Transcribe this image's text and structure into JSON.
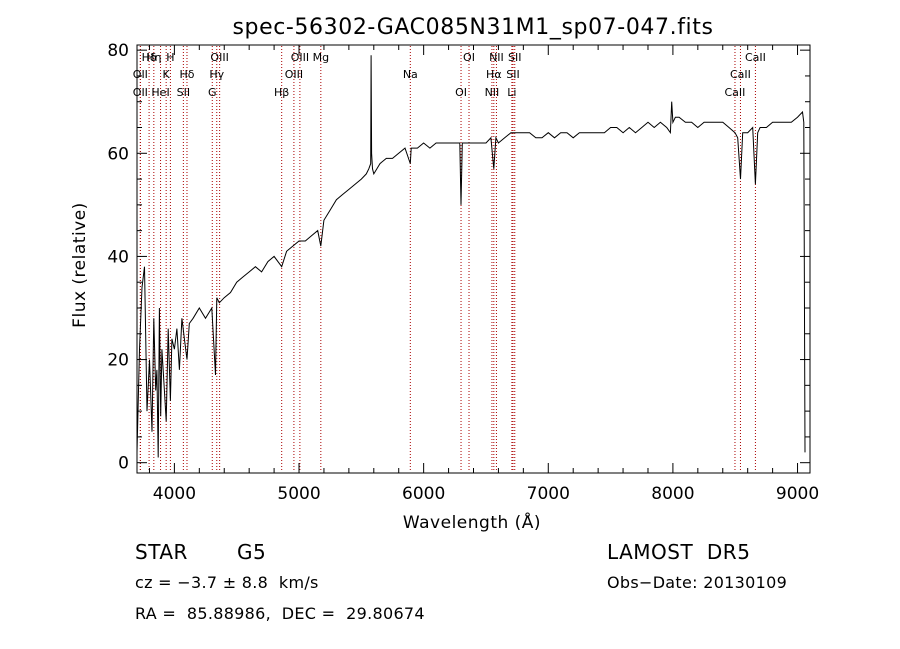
{
  "chart_data": {
    "type": "line",
    "title": "spec-56302-GAC085N31M1_sp07-047.fits",
    "xlabel": "Wavelength (Å)",
    "ylabel": "Flux (relative)",
    "xlim": [
      3700,
      9100
    ],
    "ylim": [
      -2,
      81
    ],
    "xticks": [
      "4000",
      "5000",
      "6000",
      "7000",
      "8000",
      "9000"
    ],
    "yticks": [
      "0",
      "20",
      "40",
      "60",
      "80"
    ],
    "grid": false,
    "series": [
      {
        "x": [
          3700,
          3720,
          3740,
          3760,
          3780,
          3800,
          3820,
          3835,
          3850,
          3860,
          3870,
          3880,
          3890,
          3900,
          3920,
          3934,
          3950,
          3968,
          3980,
          4000,
          4020,
          4040,
          4060,
          4080,
          4101,
          4120,
          4150,
          4200,
          4250,
          4300,
          4330,
          4340,
          4360,
          4400,
          4450,
          4500,
          4550,
          4600,
          4650,
          4700,
          4750,
          4800,
          4861,
          4900,
          4950,
          5000,
          5050,
          5100,
          5150,
          5175,
          5200,
          5250,
          5300,
          5350,
          5400,
          5450,
          5500,
          5540,
          5560,
          5575,
          5578,
          5582,
          5590,
          5600,
          5650,
          5700,
          5750,
          5800,
          5850,
          5893,
          5900,
          5950,
          6000,
          6050,
          6100,
          6150,
          6200,
          6250,
          6290,
          6300,
          6310,
          6350,
          6400,
          6450,
          6500,
          6540,
          6563,
          6580,
          6600,
          6650,
          6700,
          6750,
          6800,
          6850,
          6900,
          6950,
          7000,
          7050,
          7100,
          7150,
          7200,
          7250,
          7300,
          7350,
          7400,
          7450,
          7500,
          7550,
          7600,
          7650,
          7700,
          7750,
          7800,
          7850,
          7900,
          7950,
          7980,
          7990,
          8000,
          8020,
          8050,
          8100,
          8150,
          8200,
          8250,
          8300,
          8350,
          8400,
          8450,
          8498,
          8520,
          8542,
          8560,
          8600,
          8640,
          8662,
          8680,
          8700,
          8750,
          8800,
          8850,
          8900,
          8950,
          9000,
          9040,
          9050,
          9060
        ],
        "values": [
          2,
          22,
          34,
          38,
          10,
          20,
          6,
          28,
          14,
          18,
          1,
          30,
          9,
          22,
          14,
          8,
          26,
          12,
          24,
          22,
          26,
          18,
          28,
          24,
          20,
          27,
          28,
          30,
          28,
          30,
          17,
          32,
          31,
          32,
          33,
          35,
          36,
          37,
          38,
          37,
          39,
          40,
          38,
          41,
          42,
          43,
          43,
          44,
          45,
          42,
          47,
          49,
          51,
          52,
          53,
          54,
          55,
          56,
          57,
          58,
          79,
          60,
          57,
          56,
          58,
          59,
          59,
          60,
          61,
          58,
          61,
          61,
          62,
          61,
          62,
          62,
          62,
          62,
          62,
          50,
          62,
          62,
          62,
          62,
          62,
          63,
          57,
          63,
          62,
          63,
          64,
          64,
          64,
          64,
          63,
          63,
          64,
          63,
          64,
          64,
          63,
          64,
          64,
          64,
          64,
          64,
          65,
          65,
          64,
          65,
          64,
          65,
          66,
          65,
          66,
          65,
          64,
          70,
          66,
          67,
          67,
          66,
          66,
          65,
          66,
          66,
          66,
          66,
          65,
          64,
          63,
          55,
          64,
          64,
          65,
          54,
          64,
          65,
          65,
          66,
          66,
          66,
          66,
          67,
          68,
          66,
          2
        ]
      }
    ],
    "annotations": [
      {
        "label": "Hδ",
        "x": 3797
      },
      {
        "label": "OII",
        "x": 3727
      },
      {
        "label": "OII",
        "x": 3727
      },
      {
        "label": "Hη",
        "x": 3835
      },
      {
        "label": "K",
        "x": 3934
      },
      {
        "label": "HeI",
        "x": 3889
      },
      {
        "label": "H",
        "x": 3968
      },
      {
        "label": "Hδ",
        "x": 4101
      },
      {
        "label": "SII",
        "x": 4072
      },
      {
        "label": "OIII",
        "x": 4363
      },
      {
        "label": "Hγ",
        "x": 4340
      },
      {
        "label": "G",
        "x": 4304
      },
      {
        "label": "OIII",
        "x": 5007
      },
      {
        "label": "OIII",
        "x": 4959
      },
      {
        "label": "Hβ",
        "x": 4861
      },
      {
        "label": "Mg",
        "x": 5175
      },
      {
        "label": "Na",
        "x": 5893
      },
      {
        "label": "OI",
        "x": 6300
      },
      {
        "label": "OI",
        "x": 6364
      },
      {
        "label": "Hα",
        "x": 6563
      },
      {
        "label": "NII",
        "x": 6548
      },
      {
        "label": "NII",
        "x": 6584
      },
      {
        "label": "SII",
        "x": 6717
      },
      {
        "label": "Li",
        "x": 6708
      },
      {
        "label": "SII",
        "x": 6731
      },
      {
        "label": "CaII",
        "x": 8542
      },
      {
        "label": "CaII",
        "x": 8498
      },
      {
        "label": "CaII",
        "x": 8662
      }
    ],
    "line_marker_color": "#aa0000"
  },
  "info": {
    "object_class": "STAR",
    "subclass": "G5",
    "survey": "LAMOST  DR5",
    "cz": "cz = −3.7 ± 8.8  km/s",
    "obs_date": "Obs−Date: 20130109",
    "coords": "RA =  85.88986,  DEC =  29.80674"
  }
}
